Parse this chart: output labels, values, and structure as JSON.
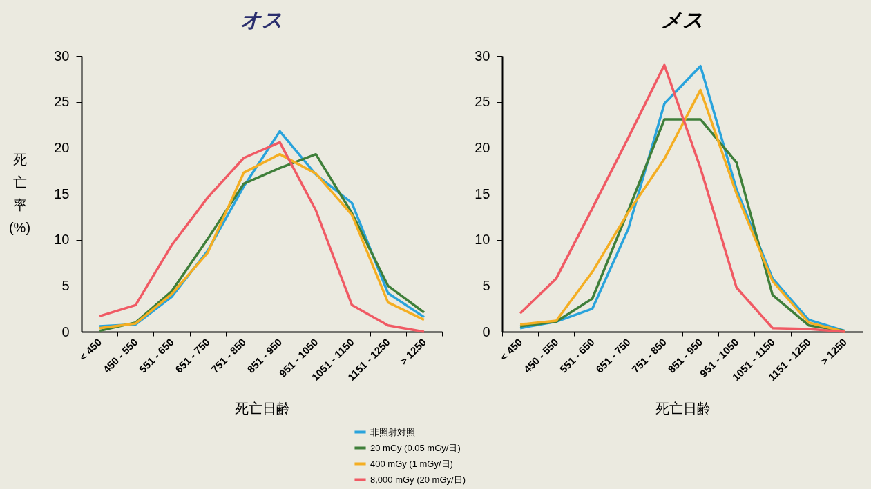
{
  "chart_data": [
    {
      "type": "line",
      "title": "オス",
      "xlabel": "死亡日齢",
      "ylabel": "死亡率(%)",
      "categories": [
        "< 450",
        "450 - 550",
        "551 - 650",
        "651 - 750",
        "751 - 850",
        "851 - 950",
        "951 - 1050",
        "1051 - 1150",
        "1151 - 1250",
        "> 1250"
      ],
      "series": [
        {
          "name": "非照射対照",
          "color": "#29a3dc",
          "values": [
            0.6,
            0.8,
            3.8,
            8.8,
            15.8,
            21.8,
            17.1,
            14.0,
            4.2,
            1.6
          ]
        },
        {
          "name": "20 mGy (0.05 mGy/日)",
          "color": "#3f7f3a",
          "values": [
            0.1,
            1.0,
            4.4,
            10.1,
            16.1,
            17.8,
            19.3,
            12.9,
            5.0,
            2.1
          ]
        },
        {
          "name": "400 mGy (1 mGy/日)",
          "color": "#f4ae22",
          "values": [
            0.4,
            0.9,
            4.1,
            8.6,
            17.3,
            19.3,
            17.2,
            12.7,
            3.2,
            1.3
          ]
        },
        {
          "name": "8,000 mGy (20 mGy/日)",
          "color": "#f05a64",
          "values": [
            1.7,
            2.9,
            9.4,
            14.6,
            18.9,
            20.6,
            13.2,
            2.9,
            0.7,
            0
          ]
        }
      ],
      "ylim": [
        0,
        30
      ],
      "yticks": [
        0,
        5,
        10,
        15,
        20,
        25,
        30
      ],
      "legend": "bottom right"
    },
    {
      "type": "line",
      "title": "メス",
      "xlabel": "死亡日齢",
      "categories": [
        "< 450",
        "450 - 550",
        "551 - 650",
        "651 - 750",
        "751 - 850",
        "851 - 950",
        "951 - 1050",
        "1051 - 1150",
        "1151 - 1250",
        "> 1250"
      ],
      "series": [
        {
          "color": "#29a3dc",
          "values": [
            0.4,
            1.1,
            2.5,
            11.2,
            24.8,
            28.9,
            15.5,
            5.8,
            1.3,
            0.1
          ]
        },
        {
          "color": "#3f7f3a",
          "values": [
            0.6,
            1.1,
            3.6,
            13.2,
            23.1,
            23.1,
            18.4,
            4.0,
            0.7,
            0.1
          ]
        },
        {
          "color": "#f4ae22",
          "values": [
            0.8,
            1.2,
            6.5,
            13.0,
            18.8,
            26.3,
            15.0,
            5.5,
            1.0,
            0
          ]
        },
        {
          "color": "#f05a64",
          "values": [
            2.0,
            5.8,
            13.4,
            21.1,
            29.0,
            17.8,
            4.8,
            0.4,
            0.3,
            0
          ]
        }
      ],
      "ylim": [
        0,
        30
      ],
      "yticks": [
        0,
        5,
        10,
        15,
        20,
        25,
        30
      ]
    }
  ]
}
